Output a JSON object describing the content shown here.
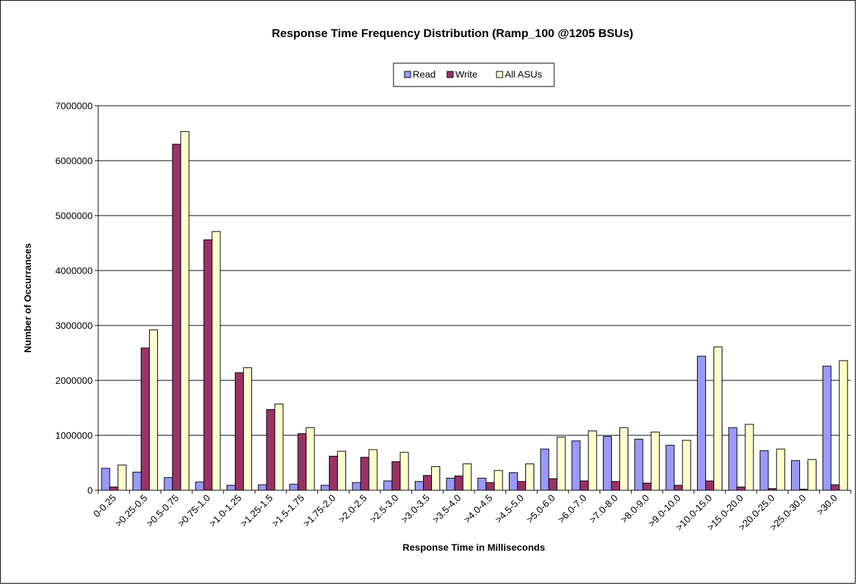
{
  "chart_data": {
    "type": "bar",
    "title": "Response Time Frequency Distribution (Ramp_100 @1205 BSUs)",
    "xlabel": "Response Time in Milliseconds",
    "ylabel": "Number of Occurrances",
    "ylim": [
      0,
      7000000
    ],
    "yticks": [
      0,
      1000000,
      2000000,
      3000000,
      4000000,
      5000000,
      6000000,
      7000000
    ],
    "grid": true,
    "legend_position": "top-center",
    "categories": [
      "0-0.25",
      ">0.25-0.5",
      ">0.5-0.75",
      ">0.75-1.0",
      ">1.0-1.25",
      ">1.25-1.5",
      ">1.5-1.75",
      ">1.75-2.0",
      ">2.0-2.5",
      ">2.5-3.0",
      ">3.0-3.5",
      ">3.5-4.0",
      ">4.0-4.5",
      ">4.5-5.0",
      ">5.0-6.0",
      ">6.0-7.0",
      ">7.0-8.0",
      ">8.0-9.0",
      ">9.0-10.0",
      ">10.0-15.0",
      ">15.0-20.0",
      ">20.0-25.0",
      ">25.0-30.0",
      ">30.0"
    ],
    "series": [
      {
        "name": "Read",
        "color": "#9999ff",
        "values": [
          400000,
          330000,
          230000,
          150000,
          90000,
          100000,
          110000,
          90000,
          140000,
          170000,
          160000,
          220000,
          220000,
          320000,
          750000,
          900000,
          980000,
          930000,
          820000,
          2440000,
          1140000,
          720000,
          540000,
          2260000
        ]
      },
      {
        "name": "Write",
        "color": "#993366",
        "values": [
          60000,
          2590000,
          6300000,
          4560000,
          2140000,
          1470000,
          1030000,
          620000,
          600000,
          520000,
          270000,
          260000,
          140000,
          160000,
          210000,
          170000,
          160000,
          130000,
          90000,
          170000,
          60000,
          30000,
          20000,
          100000
        ]
      },
      {
        "name": "All ASUs",
        "color": "#ffffcc",
        "values": [
          460000,
          2920000,
          6530000,
          4710000,
          2230000,
          1570000,
          1140000,
          710000,
          740000,
          690000,
          430000,
          480000,
          360000,
          480000,
          970000,
          1080000,
          1140000,
          1060000,
          910000,
          2610000,
          1200000,
          750000,
          560000,
          2360000
        ]
      }
    ]
  }
}
